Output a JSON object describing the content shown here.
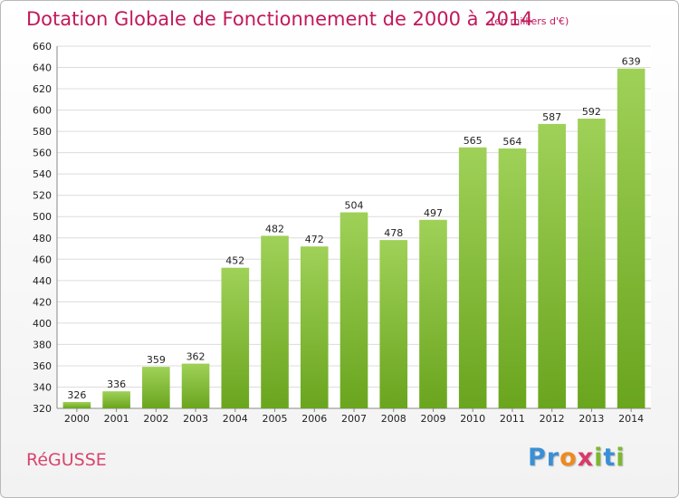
{
  "header": {
    "title": "Dotation Globale de Fonctionnement de 2000 à 2014",
    "unit": "(en milliers d'€)"
  },
  "footer": {
    "commune": "RéGUSSE",
    "brand_letters": [
      "P",
      "r",
      "o",
      "x",
      "i",
      "t",
      "i"
    ]
  },
  "colors": {
    "title": "#c2185b",
    "commune": "#d8456e",
    "bar_top": "#9fd158",
    "bar_bottom": "#6aa51e",
    "grid": "#dcdcdc",
    "brand": [
      "#3a8fd6",
      "#3a8fd6",
      "#f08a1c",
      "#d83a6a",
      "#7cb82f",
      "#3a8fd6",
      "#7cb82f"
    ]
  },
  "chart_data": {
    "type": "bar",
    "title": "Dotation Globale de Fonctionnement de 2000 à 2014",
    "subtitle": "(en milliers d'€)",
    "categories": [
      "2000",
      "2001",
      "2002",
      "2003",
      "2004",
      "2005",
      "2006",
      "2007",
      "2008",
      "2009",
      "2010",
      "2011",
      "2012",
      "2013",
      "2014"
    ],
    "values": [
      326,
      336,
      359,
      362,
      452,
      482,
      472,
      504,
      478,
      497,
      565,
      564,
      587,
      592,
      639
    ],
    "ylim": [
      320,
      660
    ],
    "yticks": [
      320,
      340,
      360,
      380,
      400,
      420,
      440,
      460,
      480,
      500,
      520,
      540,
      560,
      580,
      600,
      620,
      640,
      660
    ],
    "grid": true,
    "legend": "none",
    "data_labels": true
  }
}
